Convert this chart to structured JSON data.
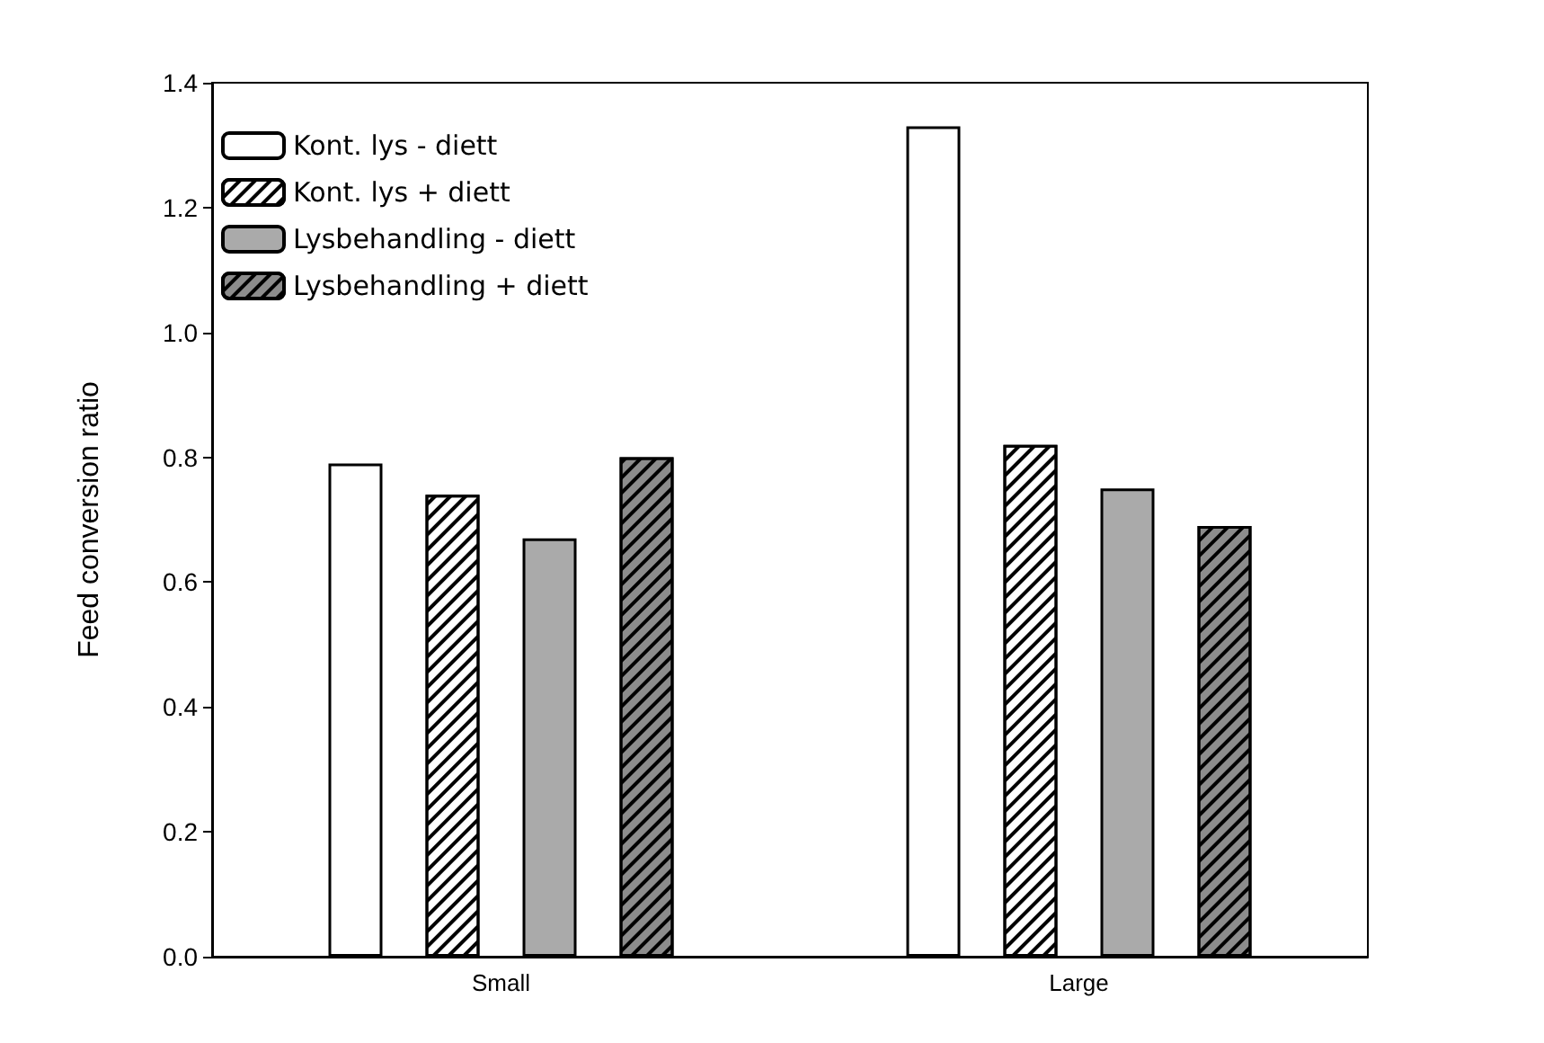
{
  "chart_data": {
    "type": "bar",
    "ylabel": "Feed conversion ratio",
    "categories": [
      "Small",
      "Large"
    ],
    "series": [
      {
        "name": "Kont. lys - diett",
        "color": "#ffffff",
        "values": [
          0.79,
          1.33
        ]
      },
      {
        "name": "Kont. lys + diett",
        "color": "#ffffff",
        "values": [
          0.74,
          0.82
        ]
      },
      {
        "name": "Lysbehandling - diett",
        "color": "#aaaaaa",
        "values": [
          0.67,
          0.75
        ]
      },
      {
        "name": "Lysbehandling + diett",
        "color": "#8c8c8c",
        "values": [
          0.8,
          0.69
        ]
      }
    ],
    "ylim": [
      0,
      1.4
    ],
    "yticks": [
      {
        "value": 0,
        "label": "0.0"
      },
      0.2,
      0.4,
      0.6,
      0.8,
      {
        "value": 1,
        "label": "1.0"
      },
      1.2,
      1.4
    ],
    "grid": false,
    "legend": "top left"
  }
}
